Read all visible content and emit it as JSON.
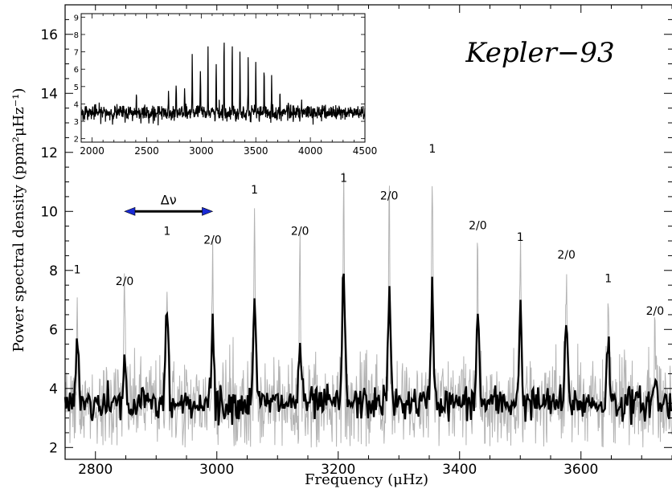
{
  "chart_data": [
    {
      "type": "line",
      "star_label": "Kepler−93",
      "xlabel": "Frequency (μHz)",
      "ylabel": "Power spectral density (ppm²μHz⁻¹)",
      "xlim": [
        2750,
        3750
      ],
      "ylim": [
        1.6,
        17
      ],
      "x_ticks": [
        "2800",
        "3000",
        "3200",
        "3400",
        "3600"
      ],
      "y_ticks": [
        "2",
        "4",
        "6",
        "8",
        "10",
        "12",
        "14",
        "16"
      ],
      "spacing_label": "Δν",
      "spacing_arrow_x": [
        2848,
        2993
      ],
      "spacing_arrow_y": 10.0,
      "background_level": 3.5,
      "series": [
        {
          "color": "#b3b3b3",
          "peaks": [
            {
              "x": 2770,
              "y": 7.4
            },
            {
              "x": 2848,
              "y": 7.0
            },
            {
              "x": 2918,
              "y": 8.7
            },
            {
              "x": 2993,
              "y": 8.4
            },
            {
              "x": 3062,
              "y": 10.1
            },
            {
              "x": 3137,
              "y": 8.7
            },
            {
              "x": 3209,
              "y": 10.5
            },
            {
              "x": 3284,
              "y": 9.9
            },
            {
              "x": 3355,
              "y": 11.5
            },
            {
              "x": 3430,
              "y": 8.9
            },
            {
              "x": 3500,
              "y": 8.5
            },
            {
              "x": 3576,
              "y": 7.9
            },
            {
              "x": 3645,
              "y": 7.1
            },
            {
              "x": 3722,
              "y": 6.0
            }
          ]
        },
        {
          "color": "#000000",
          "peaks": [
            {
              "x": 2770,
              "y": 5.8
            },
            {
              "x": 2848,
              "y": 4.8
            },
            {
              "x": 2918,
              "y": 6.6
            },
            {
              "x": 2993,
              "y": 5.9
            },
            {
              "x": 3062,
              "y": 7.3
            },
            {
              "x": 3137,
              "y": 5.6
            },
            {
              "x": 3209,
              "y": 8.1
            },
            {
              "x": 3284,
              "y": 7.2
            },
            {
              "x": 3355,
              "y": 7.4
            },
            {
              "x": 3430,
              "y": 6.6
            },
            {
              "x": 3500,
              "y": 6.6
            },
            {
              "x": 3576,
              "y": 6.1
            },
            {
              "x": 3645,
              "y": 5.6
            },
            {
              "x": 3722,
              "y": 4.3
            }
          ]
        }
      ],
      "annotations": [
        {
          "text": "1",
          "x": 2770,
          "y": 7.9
        },
        {
          "text": "2/0",
          "x": 2848,
          "y": 7.5
        },
        {
          "text": "1",
          "x": 2918,
          "y": 9.2
        },
        {
          "text": "2/0",
          "x": 2993,
          "y": 8.9
        },
        {
          "text": "1",
          "x": 3062,
          "y": 10.6
        },
        {
          "text": "2/0",
          "x": 3137,
          "y": 9.2
        },
        {
          "text": "1",
          "x": 3209,
          "y": 11.0
        },
        {
          "text": "2/0",
          "x": 3284,
          "y": 10.4
        },
        {
          "text": "1",
          "x": 3355,
          "y": 12.0
        },
        {
          "text": "2/0",
          "x": 3430,
          "y": 9.4
        },
        {
          "text": "1",
          "x": 3500,
          "y": 9.0
        },
        {
          "text": "2/0",
          "x": 3576,
          "y": 8.4
        },
        {
          "text": "1",
          "x": 3645,
          "y": 7.6
        },
        {
          "text": "2/0",
          "x": 3722,
          "y": 6.5
        }
      ]
    },
    {
      "type": "line",
      "name": "inset",
      "xlim": [
        1900,
        4500
      ],
      "ylim": [
        1.8,
        9.2
      ],
      "x_ticks": [
        "2000",
        "2500",
        "3000",
        "3500",
        "4000",
        "4500"
      ],
      "y_ticks": [
        "2",
        "3",
        "4",
        "5",
        "6",
        "7",
        "8",
        "9"
      ],
      "background_level": 3.5,
      "peaks": [
        {
          "x": 2405,
          "y": 4.8
        },
        {
          "x": 2700,
          "y": 4.6
        },
        {
          "x": 2770,
          "y": 5.1
        },
        {
          "x": 2848,
          "y": 5.0
        },
        {
          "x": 2918,
          "y": 6.8
        },
        {
          "x": 2993,
          "y": 5.8
        },
        {
          "x": 3062,
          "y": 7.4
        },
        {
          "x": 3137,
          "y": 6.3
        },
        {
          "x": 3209,
          "y": 8.0
        },
        {
          "x": 3284,
          "y": 7.2
        },
        {
          "x": 3355,
          "y": 7.3
        },
        {
          "x": 3430,
          "y": 6.8
        },
        {
          "x": 3500,
          "y": 6.8
        },
        {
          "x": 3576,
          "y": 5.8
        },
        {
          "x": 3645,
          "y": 5.3
        },
        {
          "x": 3722,
          "y": 4.6
        },
        {
          "x": 3800,
          "y": 4.4
        }
      ]
    }
  ]
}
